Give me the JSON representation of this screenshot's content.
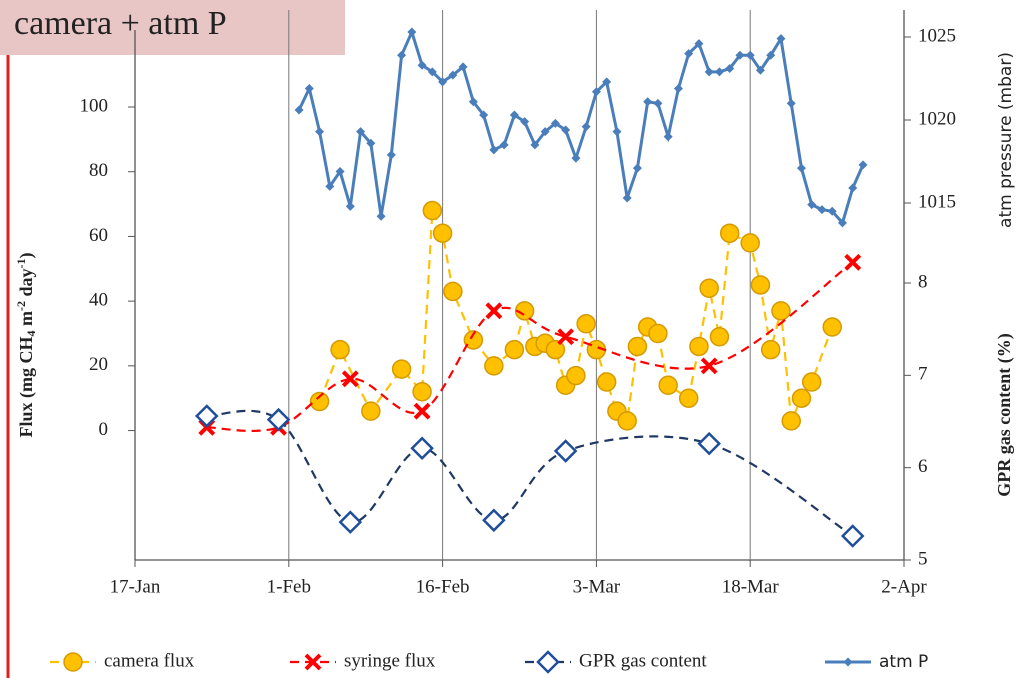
{
  "header": {
    "label": "camera + atm P"
  },
  "chart_data": {
    "type": "line",
    "ylabel_parts": [
      "Flux (mg CH",
      "4",
      " m",
      "-2",
      " day",
      "-1",
      ")"
    ],
    "y2label": "GPR gas content (%)",
    "y3label": "atm pressure (mbar)",
    "xlim": [
      17,
      92
    ],
    "xticks": [
      {
        "value": 17,
        "label": "17-Jan"
      },
      {
        "value": 32,
        "label": "1-Feb"
      },
      {
        "value": 47,
        "label": "16-Feb"
      },
      {
        "value": 62,
        "label": "3-Mar"
      },
      {
        "value": 77,
        "label": "18-Mar"
      },
      {
        "value": 92,
        "label": "2-Apr"
      }
    ],
    "ylim": [
      -40,
      100
    ],
    "yticks": [
      0,
      20,
      40,
      60,
      80,
      100
    ],
    "y2lim": [
      5,
      8
    ],
    "y2ticks": [
      5,
      6,
      7,
      8
    ],
    "y3lim": [
      1015,
      1025
    ],
    "y3ticks": [
      1015,
      1020,
      1025
    ],
    "grid": true,
    "series": [
      {
        "name": "camera flux",
        "color": "#ffc000",
        "marker": "circle",
        "dashed": true,
        "smooth": false,
        "axis": "y",
        "x": [
          35,
          37,
          40,
          43,
          45,
          46,
          47,
          48,
          50,
          52,
          54,
          55,
          56,
          57,
          58,
          59,
          60,
          61,
          62,
          63,
          64,
          65,
          66,
          67,
          68,
          69,
          71,
          72,
          73,
          74,
          75,
          77,
          78,
          79,
          80,
          81,
          82,
          83,
          85
        ],
        "values": [
          9,
          25,
          6,
          19,
          12,
          68,
          61,
          43,
          28,
          20,
          25,
          37,
          26,
          27,
          25,
          14,
          17,
          33,
          25,
          15,
          6,
          3,
          26,
          32,
          30,
          14,
          10,
          26,
          44,
          29,
          61,
          58,
          45,
          25,
          37,
          3,
          10,
          15,
          32
        ]
      },
      {
        "name": "syringe flux",
        "color": "#ff0000",
        "marker": "x",
        "dashed": true,
        "smooth": true,
        "axis": "y",
        "x": [
          24,
          31,
          38,
          45,
          52,
          59,
          73,
          87
        ],
        "values": [
          1,
          1,
          16,
          6,
          37,
          29,
          20,
          52
        ]
      },
      {
        "name": "GPR gas content",
        "color": "#1f3864",
        "marker": "diamond",
        "dashed": true,
        "smooth": true,
        "axis": "y2",
        "x": [
          24,
          31,
          38,
          45,
          52,
          59,
          73,
          87
        ],
        "values": [
          6.56,
          6.52,
          5.41,
          6.21,
          5.43,
          6.18,
          6.26,
          5.26
        ]
      },
      {
        "name": "atm P",
        "color": "#4a7ebb",
        "marker": "small-diamond",
        "dashed": false,
        "smooth": false,
        "axis": "y3",
        "x": [
          33,
          34,
          35,
          36,
          37,
          38,
          39,
          40,
          41,
          42,
          43,
          44,
          45,
          46,
          47,
          48,
          49,
          50,
          51,
          52,
          53,
          54,
          55,
          56,
          57,
          58,
          59,
          60,
          61,
          62,
          63,
          64,
          65,
          66,
          67,
          68,
          69,
          70,
          71,
          72,
          73,
          74,
          75,
          76,
          77,
          78,
          79,
          80,
          81,
          82,
          83,
          84,
          85,
          86,
          87,
          88
        ],
        "values": [
          1020.6,
          1021.9,
          1019.3,
          1016,
          1016.9,
          1014.8,
          1019.3,
          1018.6,
          1014.2,
          1017.9,
          1023.9,
          1025.3,
          1023.3,
          1022.9,
          1022.3,
          1022.7,
          1023.2,
          1021.1,
          1020.3,
          1018.2,
          1018.5,
          1020.3,
          1019.9,
          1018.5,
          1019.3,
          1019.8,
          1019.4,
          1017.7,
          1019.6,
          1021.7,
          1022.3,
          1019.3,
          1015.3,
          1017.1,
          1021.1,
          1021,
          1019,
          1021.9,
          1024,
          1024.6,
          1022.9,
          1022.9,
          1023.1,
          1023.9,
          1023.9,
          1023,
          1023.9,
          1024.9,
          1021,
          1017.1,
          1014.9,
          1014.6,
          1014.5,
          1013.8,
          1015.9,
          1017.3
        ]
      }
    ]
  }
}
